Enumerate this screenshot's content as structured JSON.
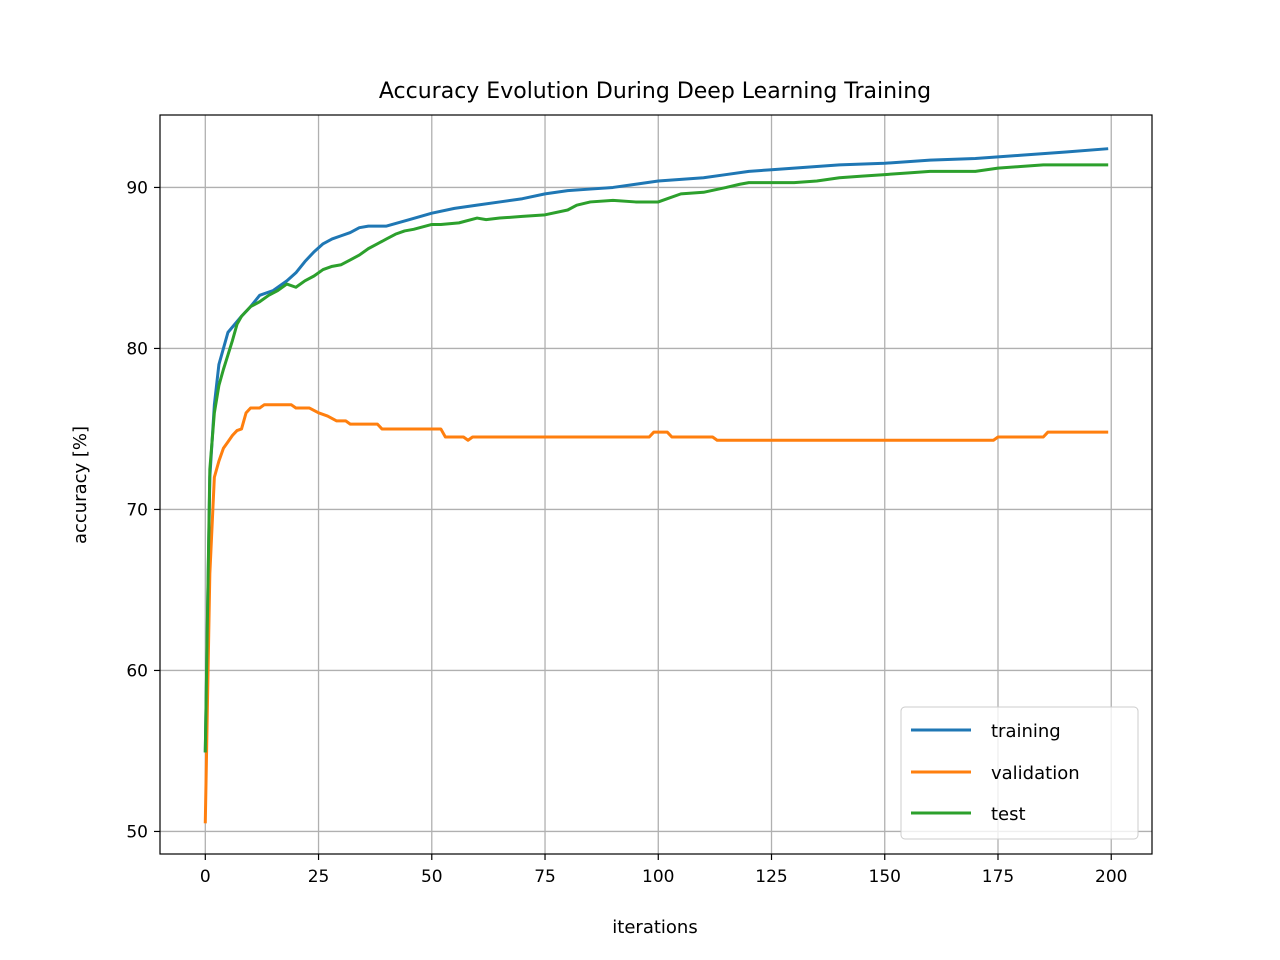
{
  "chart_data": {
    "type": "line",
    "title": "Accuracy Evolution During Deep Learning Training",
    "xlabel": "iterations",
    "ylabel": "accuracy [%]",
    "xlim": [
      -10,
      209
    ],
    "ylim": [
      48.6,
      94.5
    ],
    "xticks": [
      0,
      25,
      50,
      75,
      100,
      125,
      150,
      175,
      200
    ],
    "yticks": [
      50,
      60,
      70,
      80,
      90
    ],
    "grid": true,
    "legend_position": "lower right",
    "series": [
      {
        "name": "training",
        "color": "#1f77b4",
        "x": [
          0,
          1,
          2,
          3,
          5,
          8,
          10,
          12,
          15,
          18,
          20,
          22,
          24,
          26,
          28,
          30,
          32,
          34,
          36,
          40,
          45,
          50,
          55,
          60,
          65,
          70,
          75,
          80,
          85,
          90,
          95,
          100,
          105,
          110,
          115,
          120,
          125,
          130,
          140,
          150,
          160,
          170,
          175,
          180,
          190,
          199
        ],
        "y": [
          55.0,
          72.0,
          76.5,
          79.0,
          81.0,
          82.0,
          82.6,
          83.3,
          83.6,
          84.2,
          84.7,
          85.4,
          86.0,
          86.5,
          86.8,
          87.0,
          87.2,
          87.5,
          87.6,
          87.6,
          88.0,
          88.4,
          88.7,
          88.9,
          89.1,
          89.3,
          89.6,
          89.8,
          89.9,
          90.0,
          90.2,
          90.4,
          90.5,
          90.6,
          90.8,
          91.0,
          91.1,
          91.2,
          91.4,
          91.5,
          91.7,
          91.8,
          91.9,
          92.0,
          92.2,
          92.4
        ]
      },
      {
        "name": "validation",
        "color": "#ff7f0e",
        "x": [
          0,
          1,
          2,
          3,
          4,
          5,
          6,
          7,
          8,
          9,
          10,
          12,
          13,
          15,
          18,
          19,
          20,
          23,
          25,
          27,
          29,
          31,
          32,
          38,
          39,
          52,
          53,
          57,
          58,
          59,
          98,
          99,
          102,
          103,
          112,
          113,
          174,
          175,
          185,
          186,
          199
        ],
        "y": [
          50.6,
          66.0,
          72.0,
          73.0,
          73.8,
          74.2,
          74.6,
          74.9,
          75.0,
          76.0,
          76.3,
          76.3,
          76.5,
          76.5,
          76.5,
          76.5,
          76.3,
          76.3,
          76.0,
          75.8,
          75.5,
          75.5,
          75.3,
          75.3,
          75.0,
          75.0,
          74.5,
          74.5,
          74.3,
          74.5,
          74.5,
          74.8,
          74.8,
          74.5,
          74.5,
          74.3,
          74.3,
          74.5,
          74.5,
          74.8,
          74.8
        ]
      },
      {
        "name": "test",
        "color": "#2ca02c",
        "x": [
          0,
          1,
          2,
          3,
          4,
          5,
          6,
          7,
          8,
          10,
          12,
          14,
          16,
          18,
          20,
          22,
          24,
          26,
          28,
          30,
          32,
          34,
          36,
          38,
          40,
          42,
          44,
          46,
          50,
          52,
          56,
          60,
          62,
          65,
          70,
          75,
          80,
          82,
          85,
          90,
          95,
          100,
          102,
          105,
          110,
          115,
          118,
          120,
          125,
          130,
          135,
          140,
          145,
          150,
          155,
          160,
          165,
          170,
          175,
          180,
          185,
          190,
          199
        ],
        "y": [
          55.0,
          72.5,
          76.0,
          77.7,
          78.7,
          79.6,
          80.5,
          81.5,
          82.0,
          82.6,
          82.9,
          83.3,
          83.6,
          84.0,
          83.8,
          84.2,
          84.5,
          84.9,
          85.1,
          85.2,
          85.5,
          85.8,
          86.2,
          86.5,
          86.8,
          87.1,
          87.3,
          87.4,
          87.7,
          87.7,
          87.8,
          88.1,
          88.0,
          88.1,
          88.2,
          88.3,
          88.6,
          88.9,
          89.1,
          89.2,
          89.1,
          89.1,
          89.3,
          89.6,
          89.7,
          90.0,
          90.2,
          90.3,
          90.3,
          90.3,
          90.4,
          90.6,
          90.7,
          90.8,
          90.9,
          91.0,
          91.0,
          91.0,
          91.2,
          91.3,
          91.4,
          91.4,
          91.4
        ]
      }
    ]
  }
}
